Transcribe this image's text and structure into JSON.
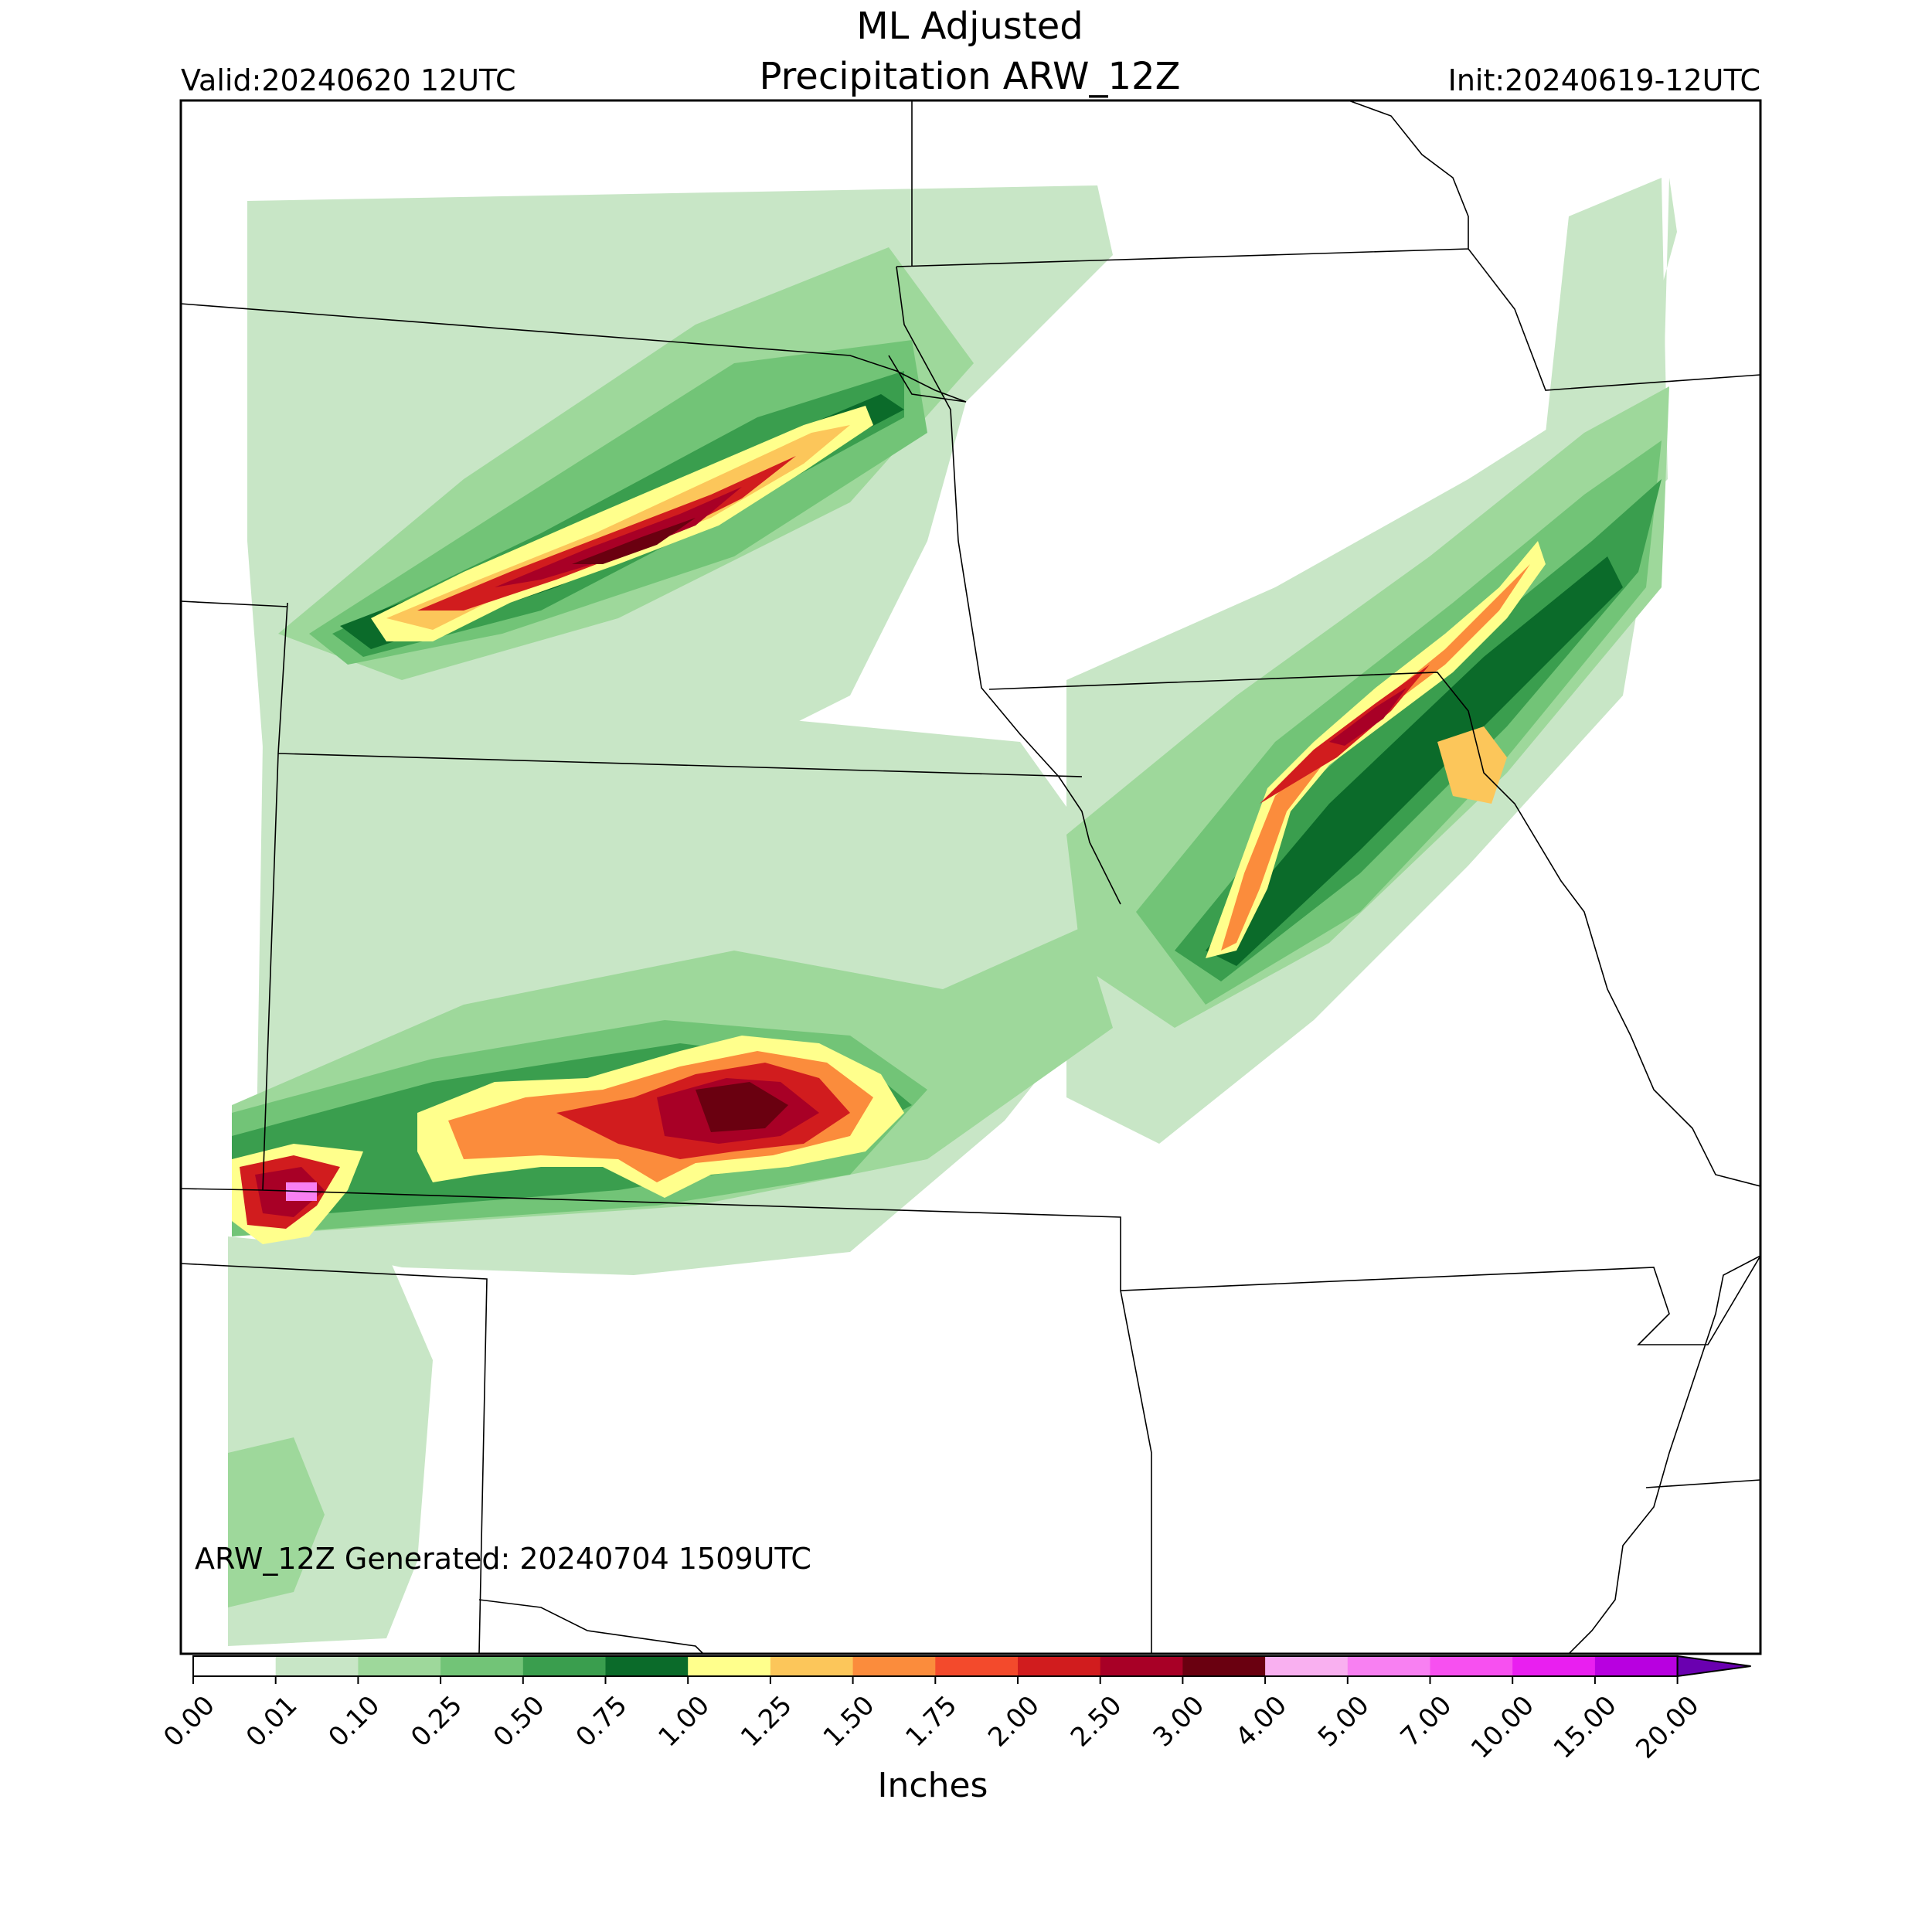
{
  "header": {
    "title_line1": "ML Adjusted",
    "title_line2": "Precipitation ARW_12Z",
    "valid": "Valid:20240620 12UTC",
    "init": "Init:20240619-12UTC"
  },
  "footer": {
    "generated": "ARW_12Z Generated: 20240704 1509UTC"
  },
  "colorbar": {
    "label": "Inches",
    "levels": [
      "0.00",
      "0.01",
      "0.10",
      "0.25",
      "0.50",
      "0.75",
      "1.00",
      "1.25",
      "1.50",
      "1.75",
      "2.00",
      "2.50",
      "3.00",
      "4.00",
      "5.00",
      "7.00",
      "10.00",
      "15.00",
      "20.00"
    ],
    "colors": [
      "#ffffff",
      "#c8e6c6",
      "#9ed89b",
      "#72c477",
      "#3a9e4e",
      "#0b6b2a",
      "#ffff8c",
      "#fcc65a",
      "#fb8c3c",
      "#f34a2c",
      "#d11c1e",
      "#a80026",
      "#6a0010",
      "#f9b0f0",
      "#f880f2",
      "#f750f0",
      "#e91ff0",
      "#b800e0"
    ],
    "extend_color": "#6a00b0"
  },
  "palette": {
    "p001": "#c8e6c6",
    "p010": "#9ed89b",
    "p025": "#72c477",
    "p050": "#3a9e4e",
    "p075": "#0b6b2a",
    "p100": "#ffff8c",
    "p125": "#fcc65a",
    "p150": "#fb8c3c",
    "p200": "#d11c1e",
    "p250": "#a80026",
    "p300": "#6a0010",
    "p500": "#f880f2"
  }
}
